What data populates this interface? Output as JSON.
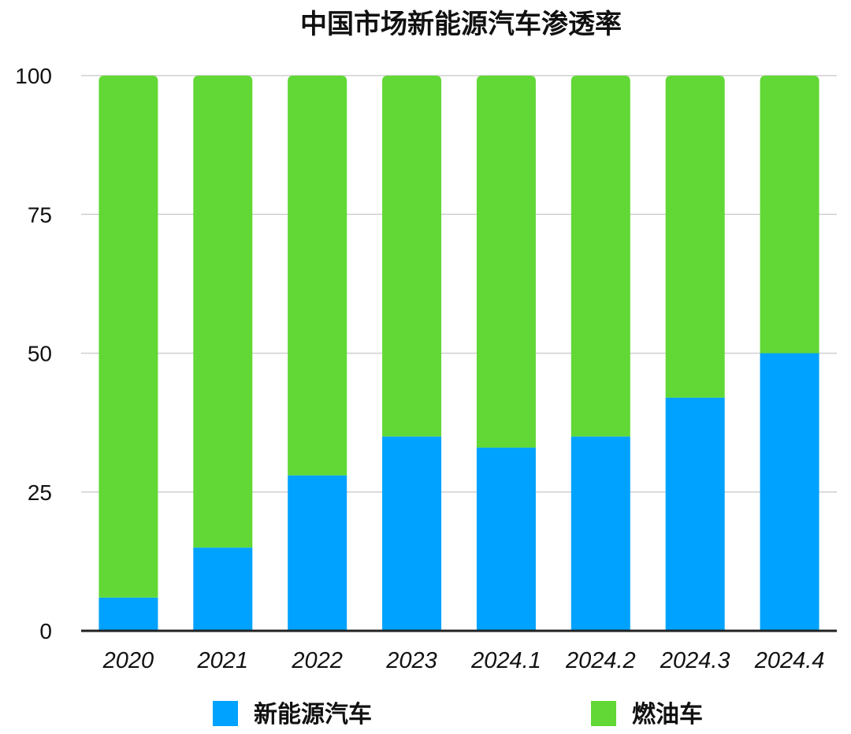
{
  "chart_data": {
    "type": "bar",
    "stacked": true,
    "title": "中国市场新能源汽车渗透率",
    "xlabel": "",
    "ylabel": "",
    "ylim": [
      0,
      100
    ],
    "yticks": [
      "0",
      "25",
      "50",
      "75",
      "100"
    ],
    "grid": true,
    "legend_position": "bottom",
    "categories": [
      "2020",
      "2021",
      "2022",
      "2023",
      "2024.1",
      "2024.2",
      "2024.3",
      "2024.4"
    ],
    "series": [
      {
        "name": "新能源汽车",
        "color": "#00a2ff",
        "values": [
          6,
          15,
          28,
          35,
          33,
          35,
          42,
          50
        ]
      },
      {
        "name": "燃油车",
        "color": "#61d836",
        "values": [
          94,
          85,
          72,
          65,
          67,
          65,
          58,
          50
        ]
      }
    ]
  }
}
